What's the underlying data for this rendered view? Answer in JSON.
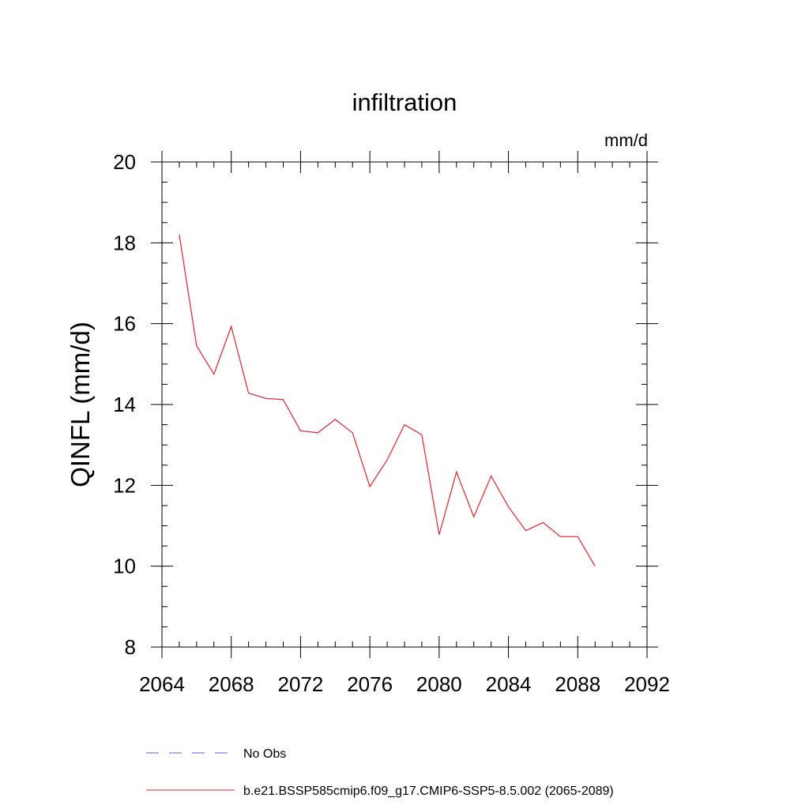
{
  "chart_data": {
    "type": "line",
    "title": "infiltration",
    "units_label": "mm/d",
    "ylabel": "QINFL  (mm/d)",
    "xlabel": "",
    "xlim": [
      2064,
      2092
    ],
    "ylim": [
      8,
      20
    ],
    "x_ticks": [
      2064,
      2068,
      2072,
      2076,
      2080,
      2084,
      2088,
      2092
    ],
    "y_ticks": [
      8,
      10,
      12,
      14,
      16,
      18,
      20
    ],
    "x_minor_step": 1,
    "y_minor_step": 0.5,
    "grid": false,
    "legend_position": "bottom",
    "series": [
      {
        "name": "b.e21.BSSP585cmip6.f09_g17.CMIP6-SSP5-8.5.002 (2065-2089)",
        "color": "#e8202a",
        "style": "solid",
        "x": [
          2065,
          2066,
          2067,
          2068,
          2069,
          2070,
          2071,
          2072,
          2073,
          2074,
          2075,
          2076,
          2077,
          2078,
          2079,
          2080,
          2081,
          2082,
          2083,
          2084,
          2085,
          2086,
          2087,
          2088,
          2089
        ],
        "values": [
          18.2,
          15.45,
          14.75,
          15.93,
          14.28,
          14.15,
          14.12,
          13.35,
          13.3,
          13.63,
          13.3,
          11.97,
          12.63,
          13.5,
          13.25,
          10.78,
          12.33,
          11.22,
          12.23,
          11.47,
          10.88,
          11.08,
          10.73,
          10.73,
          10.0
        ]
      }
    ],
    "legend": [
      {
        "label": "No Obs",
        "color": "#6a5acd",
        "style": "dashed"
      },
      {
        "label": "b.e21.BSSP585cmip6.f09_g17.CMIP6-SSP5-8.5.002 (2065-2089)",
        "color": "#e8202a",
        "style": "solid"
      }
    ]
  }
}
